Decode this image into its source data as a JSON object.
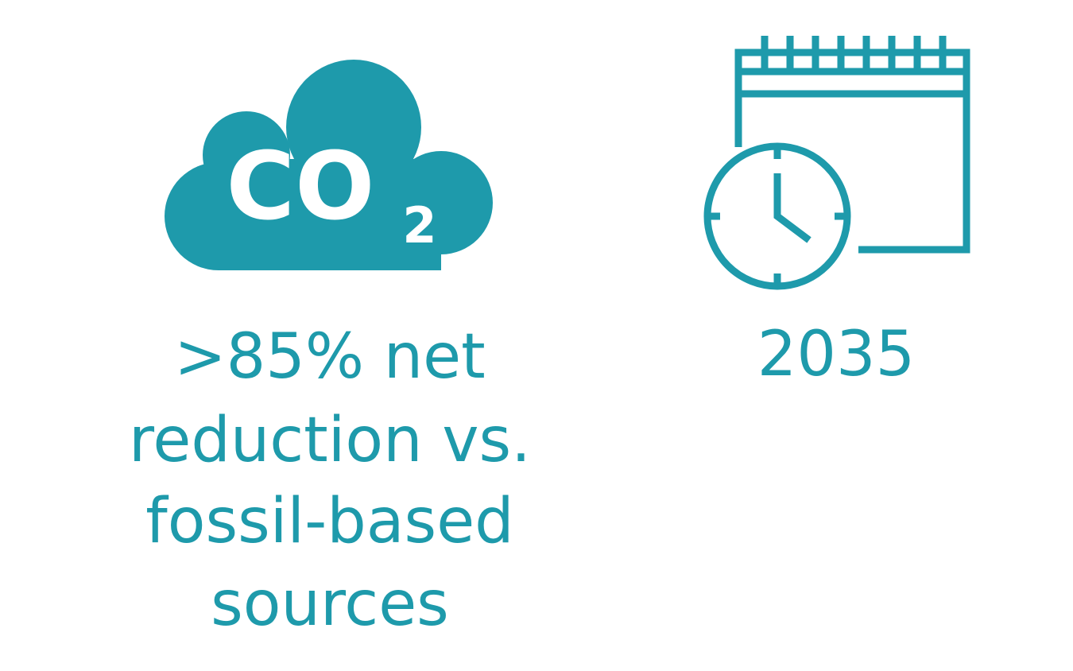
{
  "items": [
    {
      "icon_text": {
        "main": "CO",
        "subscript": "2"
      },
      "text_lines": [
        ">85% net",
        "reduction vs.",
        "fossil-based",
        "sources"
      ]
    },
    {
      "text_lines": [
        "2035"
      ]
    }
  ]
}
